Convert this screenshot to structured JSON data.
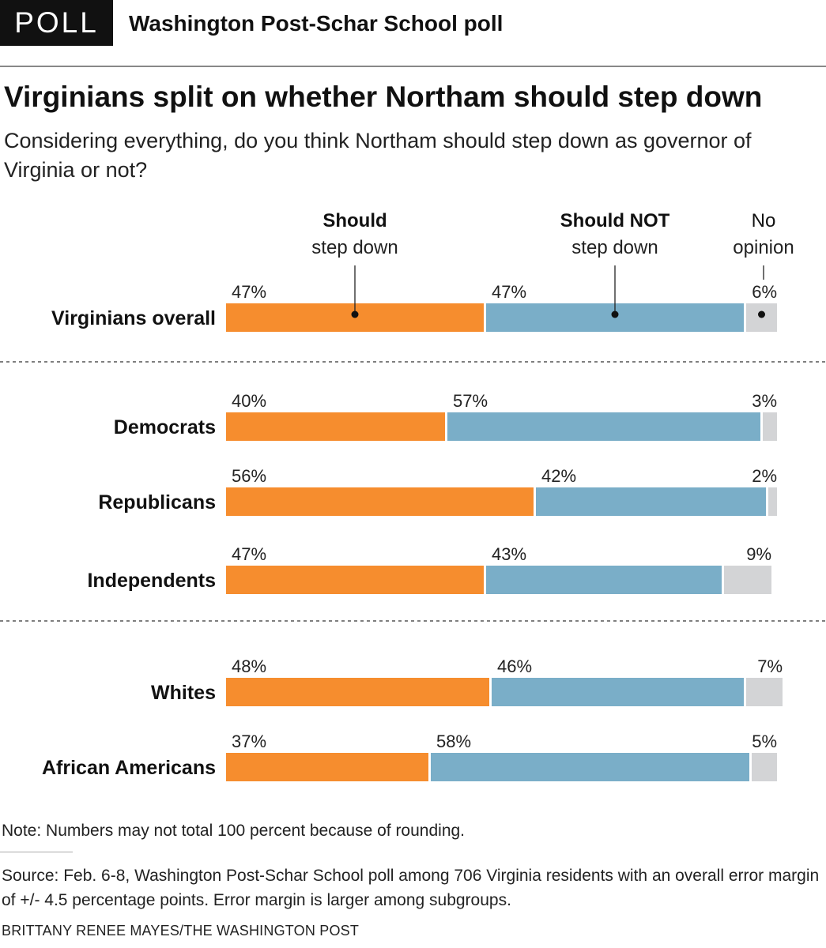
{
  "header": {
    "badge": "POLL",
    "title": "Washington Post-Schar School poll"
  },
  "title": "Virginians split on whether Northam should step down",
  "subtitle": "Considering everything, do you think Northam should step down as governor of Virginia or not?",
  "legend": {
    "should": {
      "bold": "Should",
      "rest": "step down"
    },
    "should_not": {
      "bold": "Should NOT",
      "rest": "step down"
    },
    "no_opinion": {
      "line1": "No",
      "line2": "opinion"
    }
  },
  "colors": {
    "should": "#f68d2e",
    "should_not": "#7aaec8",
    "no_opinion": "#d3d4d6"
  },
  "chart_data": {
    "type": "bar",
    "stacked": true,
    "orientation": "horizontal",
    "unit": "%",
    "series_names": [
      "Should step down",
      "Should NOT step down",
      "No opinion"
    ],
    "groups": [
      [
        {
          "label": "Virginians overall",
          "values": [
            47,
            47,
            6
          ]
        }
      ],
      [
        {
          "label": "Democrats",
          "values": [
            40,
            57,
            3
          ]
        },
        {
          "label": "Republicans",
          "values": [
            56,
            42,
            2
          ]
        },
        {
          "label": "Independents",
          "values": [
            47,
            43,
            9
          ]
        }
      ],
      [
        {
          "label": "Whites",
          "values": [
            48,
            46,
            7
          ]
        },
        {
          "label": "African Americans",
          "values": [
            37,
            58,
            5
          ]
        }
      ]
    ]
  },
  "note": "Note: Numbers may not total 100 percent because of rounding.",
  "source": "Source: Feb. 6-8, Washington Post-Schar School poll among 706 Virginia residents with an overall error margin of +/- 4.5 percentage points. Error margin is larger among subgroups.",
  "credit": "BRITTANY RENEE MAYES/THE WASHINGTON POST"
}
